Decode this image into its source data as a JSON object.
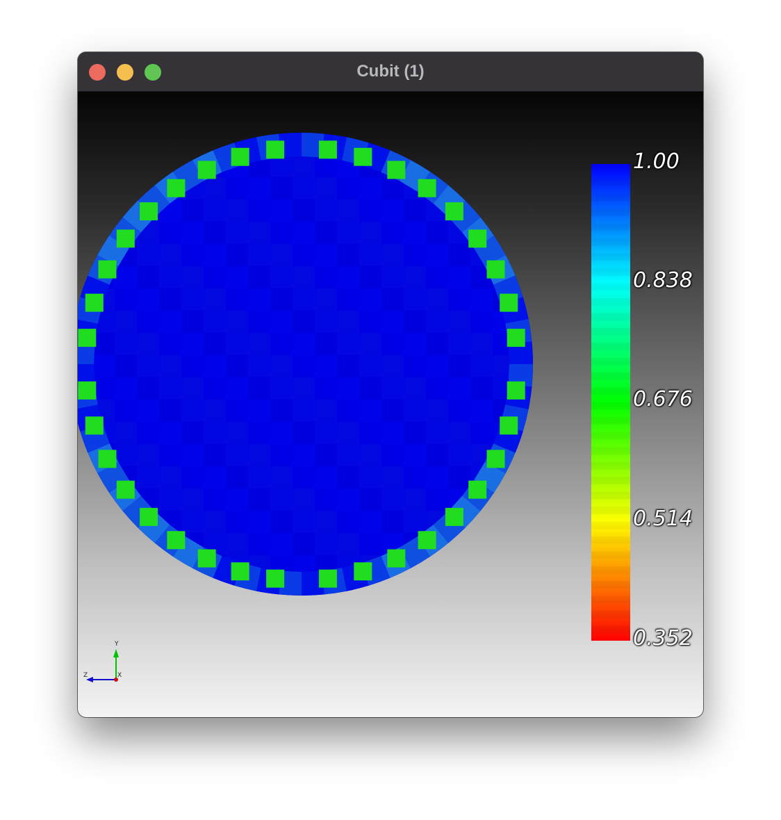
{
  "window": {
    "title": "Cubit (1)"
  },
  "colorbar": {
    "labels": [
      "1.00",
      "0.838",
      "0.676",
      "0.514",
      "0.352"
    ],
    "min": 0.352,
    "max": 1.0,
    "colormap": [
      "#ff0000",
      "#ffff00",
      "#00ff00",
      "#00ffff",
      "#0000ff"
    ]
  },
  "axes": {
    "labels": [
      "Y",
      "Z",
      "X"
    ],
    "colors": {
      "y": "#00c000",
      "z": "#0000cc",
      "x": "#cc0000"
    }
  },
  "mesh": {
    "interior_color": "#0000e8",
    "edge_color": "#1060e0",
    "corner_color": "#20dd20"
  }
}
